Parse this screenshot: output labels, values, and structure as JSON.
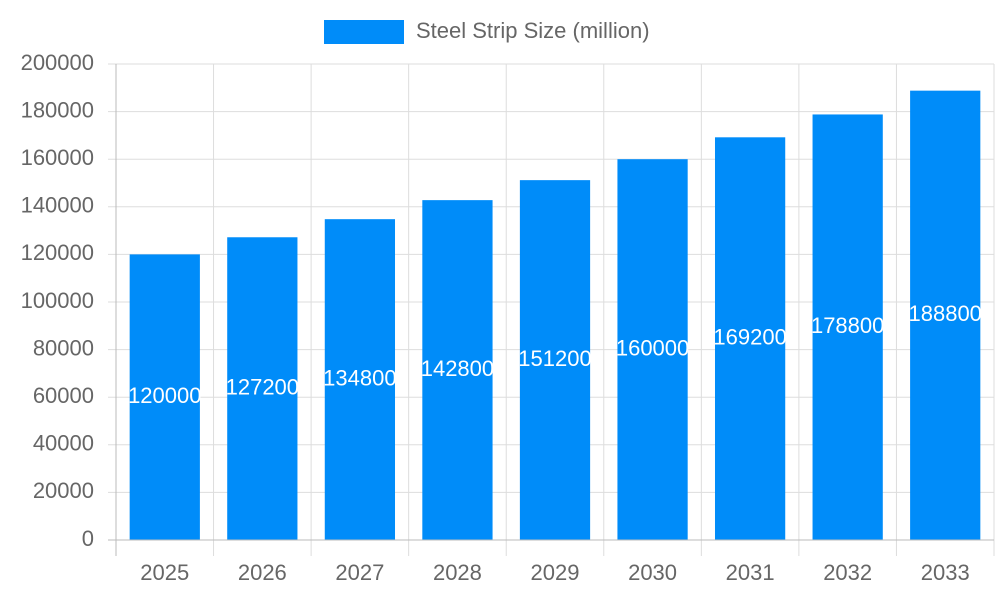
{
  "chart_data": {
    "type": "bar",
    "categories": [
      "2025",
      "2026",
      "2027",
      "2028",
      "2029",
      "2030",
      "2031",
      "2032",
      "2033"
    ],
    "series": [
      {
        "name": "Steel Strip Size (million)",
        "color": "#008cf9",
        "values": [
          120000,
          127200,
          134800,
          142800,
          151200,
          160000,
          169200,
          178800,
          188800
        ]
      }
    ],
    "ylim": [
      0,
      200000
    ],
    "yticks": [
      0,
      20000,
      40000,
      60000,
      80000,
      100000,
      120000,
      140000,
      160000,
      180000,
      200000
    ],
    "grid": true,
    "legend": "top",
    "value_labels_position": "center"
  }
}
